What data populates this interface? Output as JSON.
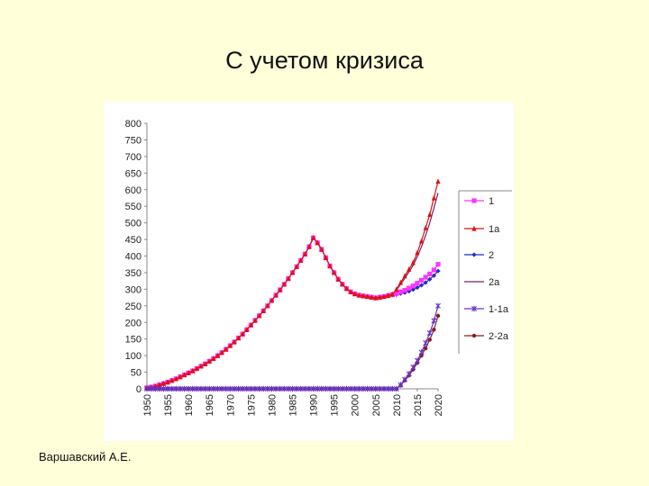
{
  "slide": {
    "title": "С учетом кризиса",
    "author": "Варшавский А.Е."
  },
  "chart_data": {
    "type": "line",
    "title": "",
    "xlabel": "",
    "ylabel": "",
    "xlim": [
      1950,
      2020
    ],
    "ylim": [
      0,
      800
    ],
    "y_ticks": [
      0,
      50,
      100,
      150,
      200,
      250,
      300,
      350,
      400,
      450,
      500,
      550,
      600,
      650,
      700,
      750,
      800
    ],
    "x_ticks": [
      1950,
      1955,
      1960,
      1965,
      1970,
      1975,
      1980,
      1985,
      1990,
      1995,
      2000,
      2005,
      2010,
      2015,
      2020
    ],
    "grid": false,
    "legend_position": "right",
    "x": [
      1950,
      1951,
      1952,
      1953,
      1954,
      1955,
      1956,
      1957,
      1958,
      1959,
      1960,
      1961,
      1962,
      1963,
      1964,
      1965,
      1966,
      1967,
      1968,
      1969,
      1970,
      1971,
      1972,
      1973,
      1974,
      1975,
      1976,
      1977,
      1978,
      1979,
      1980,
      1981,
      1982,
      1983,
      1984,
      1985,
      1986,
      1987,
      1988,
      1989,
      1990,
      1991,
      1992,
      1993,
      1994,
      1995,
      1996,
      1997,
      1998,
      1999,
      2000,
      2001,
      2002,
      2003,
      2004,
      2005,
      2006,
      2007,
      2008,
      2009,
      2010,
      2011,
      2012,
      2013,
      2014,
      2015,
      2016,
      2017,
      2018,
      2019,
      2020
    ],
    "series": [
      {
        "name": "1",
        "color": "#ff33ff",
        "marker": "square",
        "values": [
          3,
          5,
          8,
          12,
          16,
          20,
          25,
          30,
          36,
          42,
          48,
          54,
          61,
          68,
          75,
          83,
          91,
          100,
          109,
          119,
          130,
          141,
          153,
          165,
          178,
          192,
          206,
          220,
          235,
          250,
          266,
          282,
          298,
          315,
          332,
          350,
          368,
          387,
          406,
          428,
          455,
          440,
          420,
          395,
          370,
          350,
          330,
          315,
          302,
          292,
          286,
          282,
          280,
          278,
          276,
          274,
          276,
          278,
          281,
          284,
          287,
          292,
          297,
          303,
          310,
          318,
          327,
          336,
          346,
          358,
          375
        ]
      },
      {
        "name": "1а",
        "color": "#dd1111",
        "marker": "triangle",
        "values": [
          3,
          5,
          8,
          12,
          16,
          20,
          25,
          30,
          36,
          42,
          48,
          54,
          61,
          68,
          75,
          83,
          91,
          100,
          109,
          119,
          130,
          141,
          153,
          165,
          178,
          192,
          206,
          220,
          235,
          250,
          266,
          282,
          298,
          315,
          332,
          350,
          368,
          387,
          406,
          428,
          455,
          440,
          420,
          395,
          370,
          350,
          330,
          315,
          302,
          292,
          286,
          282,
          280,
          278,
          276,
          274,
          276,
          278,
          281,
          285,
          300,
          320,
          340,
          360,
          380,
          410,
          445,
          485,
          525,
          575,
          625
        ]
      },
      {
        "name": "2",
        "color": "#1f2fc4",
        "marker": "diamond",
        "values": [
          3,
          5,
          8,
          12,
          16,
          20,
          25,
          30,
          36,
          42,
          48,
          54,
          61,
          68,
          75,
          83,
          91,
          100,
          109,
          119,
          130,
          141,
          153,
          165,
          178,
          192,
          206,
          220,
          235,
          250,
          266,
          282,
          298,
          315,
          332,
          350,
          368,
          387,
          406,
          428,
          455,
          440,
          420,
          395,
          370,
          350,
          330,
          315,
          302,
          292,
          286,
          282,
          280,
          278,
          276,
          274,
          276,
          278,
          280,
          282,
          284,
          287,
          290,
          294,
          299,
          305,
          312,
          320,
          330,
          341,
          355
        ]
      },
      {
        "name": "2а",
        "color": "#7a1f6a",
        "marker": "none",
        "values": [
          3,
          5,
          8,
          12,
          16,
          20,
          25,
          30,
          36,
          42,
          48,
          54,
          61,
          68,
          75,
          83,
          91,
          100,
          109,
          119,
          130,
          141,
          153,
          165,
          178,
          192,
          206,
          220,
          235,
          250,
          266,
          282,
          298,
          315,
          332,
          350,
          368,
          387,
          406,
          428,
          455,
          440,
          420,
          395,
          370,
          350,
          330,
          315,
          302,
          292,
          286,
          282,
          280,
          278,
          276,
          274,
          276,
          278,
          281,
          285,
          298,
          315,
          333,
          352,
          372,
          398,
          428,
          462,
          500,
          545,
          590
        ]
      },
      {
        "name": "1-1а",
        "color": "#6633cc",
        "marker": "star",
        "values": [
          0,
          0,
          0,
          0,
          0,
          0,
          0,
          0,
          0,
          0,
          0,
          0,
          0,
          0,
          0,
          0,
          0,
          0,
          0,
          0,
          0,
          0,
          0,
          0,
          0,
          0,
          0,
          0,
          0,
          0,
          0,
          0,
          0,
          0,
          0,
          0,
          0,
          0,
          0,
          0,
          0,
          0,
          0,
          0,
          0,
          0,
          0,
          0,
          0,
          0,
          0,
          0,
          0,
          0,
          0,
          0,
          0,
          0,
          0,
          0,
          0,
          12,
          28,
          45,
          65,
          85,
          110,
          138,
          168,
          205,
          250
        ]
      },
      {
        "name": "2-2а",
        "color": "#8b1a1a",
        "marker": "circle",
        "values": [
          0,
          0,
          0,
          0,
          0,
          0,
          0,
          0,
          0,
          0,
          0,
          0,
          0,
          0,
          0,
          0,
          0,
          0,
          0,
          0,
          0,
          0,
          0,
          0,
          0,
          0,
          0,
          0,
          0,
          0,
          0,
          0,
          0,
          0,
          0,
          0,
          0,
          0,
          0,
          0,
          0,
          0,
          0,
          0,
          0,
          0,
          0,
          0,
          0,
          0,
          0,
          0,
          0,
          0,
          0,
          0,
          0,
          0,
          0,
          0,
          0,
          10,
          25,
          40,
          58,
          78,
          100,
          122,
          148,
          178,
          220
        ]
      }
    ]
  }
}
